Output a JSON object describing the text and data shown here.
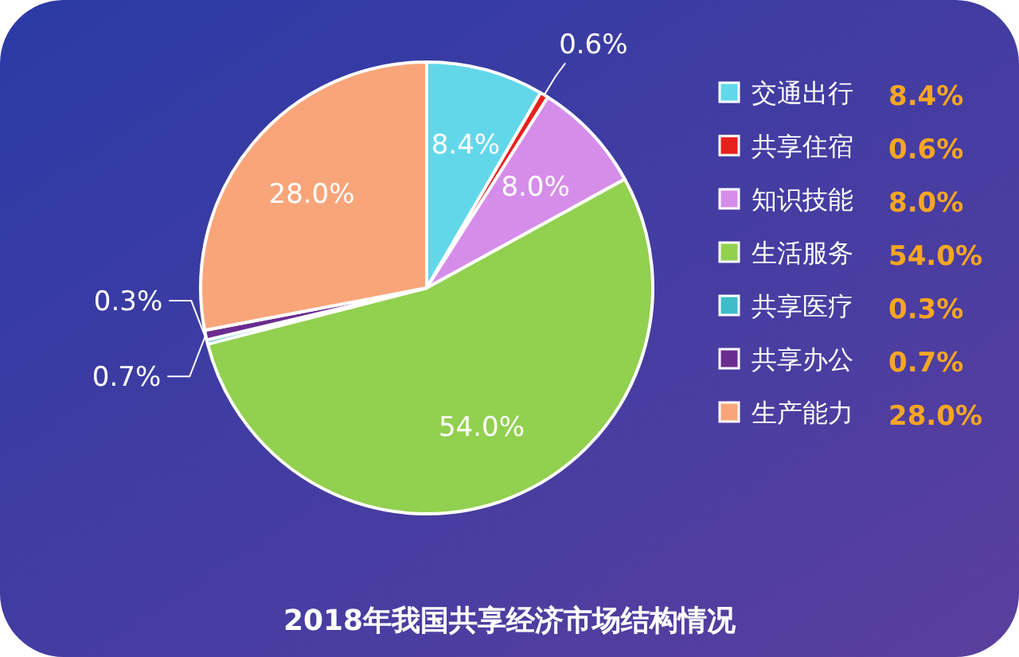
{
  "chart_data": {
    "type": "pie",
    "title": "2018年我国共享经济市场结构情况",
    "categories": [
      "交通出行",
      "共享住宿",
      "知识技能",
      "生活服务",
      "共享医疗",
      "共享办公",
      "生产能力"
    ],
    "values": [
      8.4,
      0.6,
      8.0,
      54.0,
      0.3,
      0.7,
      28.0
    ],
    "value_labels": [
      "8.4%",
      "0.6%",
      "8.0%",
      "54.0%",
      "0.3%",
      "0.7%",
      "28.0%"
    ],
    "colors": [
      "#63d7ea",
      "#e8201c",
      "#d68de9",
      "#92d050",
      "#40bcc9",
      "#6b2c8f",
      "#f9a57a"
    ],
    "legend": "right"
  }
}
